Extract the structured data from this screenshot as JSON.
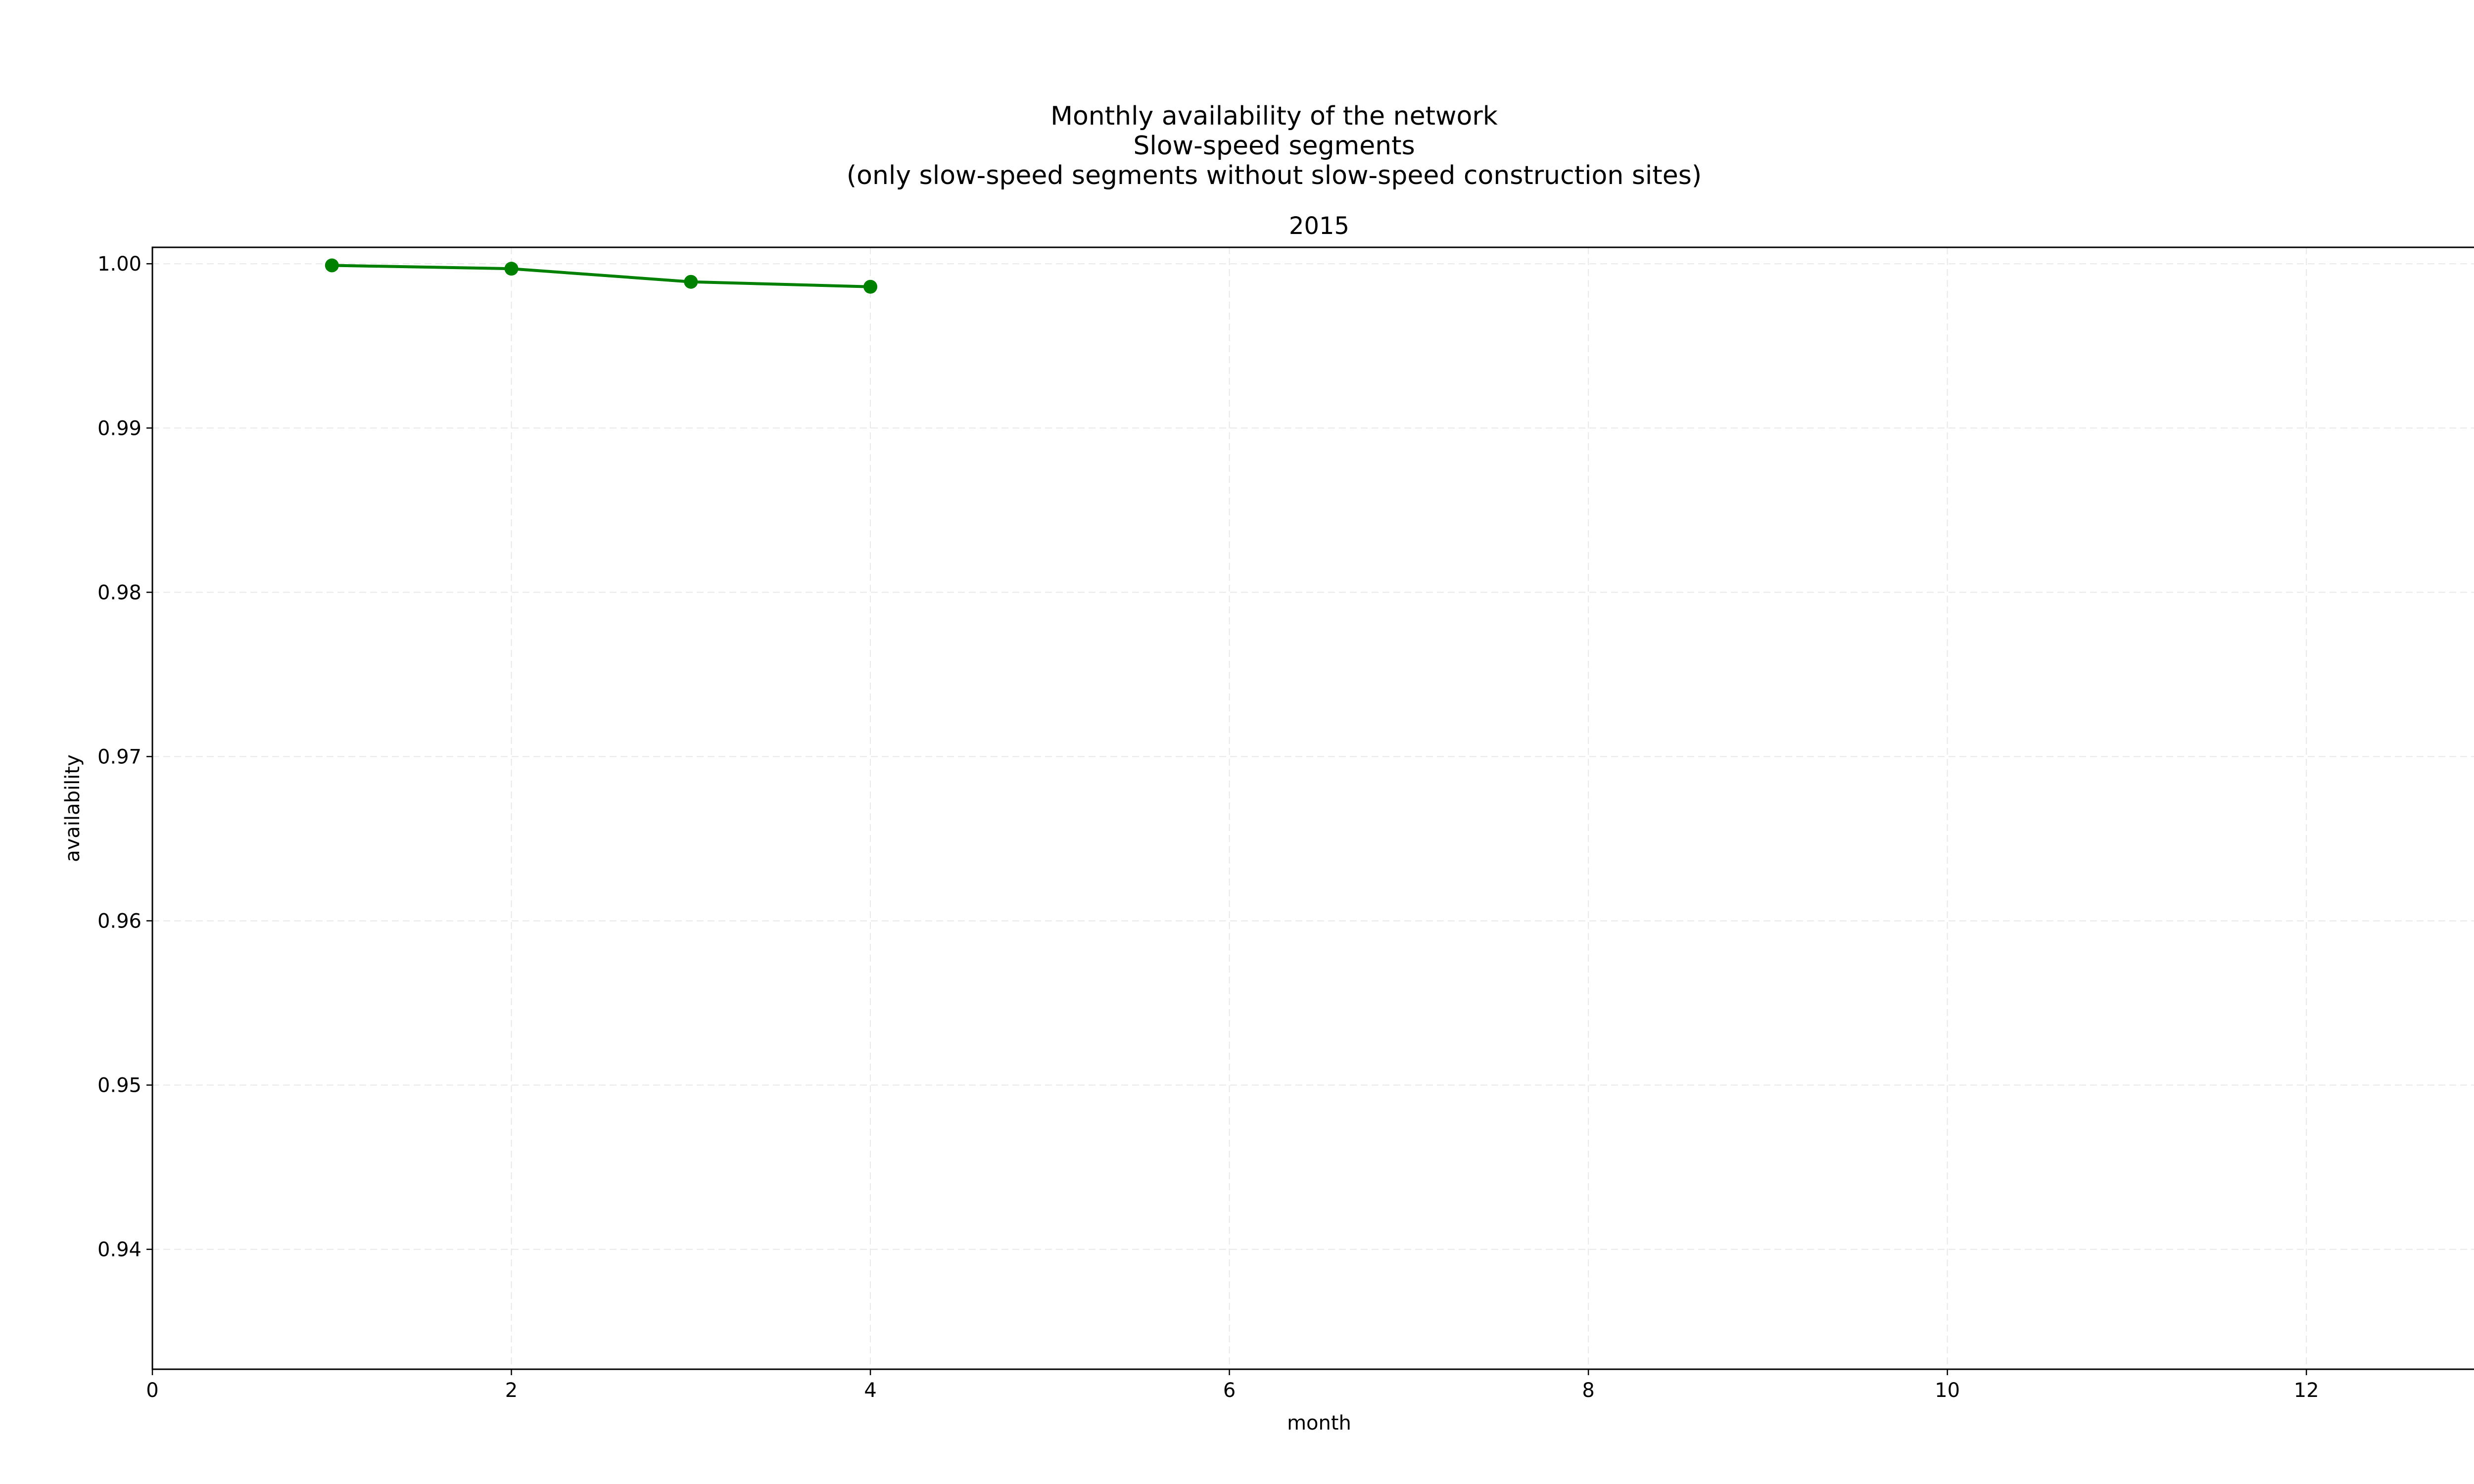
{
  "chart_data": {
    "type": "line",
    "title_lines": [
      "Monthly availability of the network",
      "Slow-speed segments",
      "(only slow-speed segments without slow-speed construction sites)"
    ],
    "subtitle": "2015",
    "xlabel": "month",
    "ylabel": "availability",
    "xlim": [
      0,
      13
    ],
    "ylim": [
      0.9327,
      1.001
    ],
    "x_ticks": [
      0,
      2,
      4,
      6,
      8,
      10,
      12
    ],
    "y_ticks": [
      0.94,
      0.95,
      0.96,
      0.97,
      0.98,
      0.99,
      1.0
    ],
    "y_tick_labels": [
      "0.94",
      "0.95",
      "0.96",
      "0.97",
      "0.98",
      "0.99",
      "1.00"
    ],
    "x_tick_labels": [
      "0",
      "2",
      "4",
      "6",
      "8",
      "10",
      "12"
    ],
    "grid": true,
    "series": [
      {
        "color": "#008000",
        "marker": "circle",
        "x": [
          1,
          2,
          3,
          4
        ],
        "y": [
          0.9999,
          0.9997,
          0.9989,
          0.9986
        ]
      }
    ]
  }
}
